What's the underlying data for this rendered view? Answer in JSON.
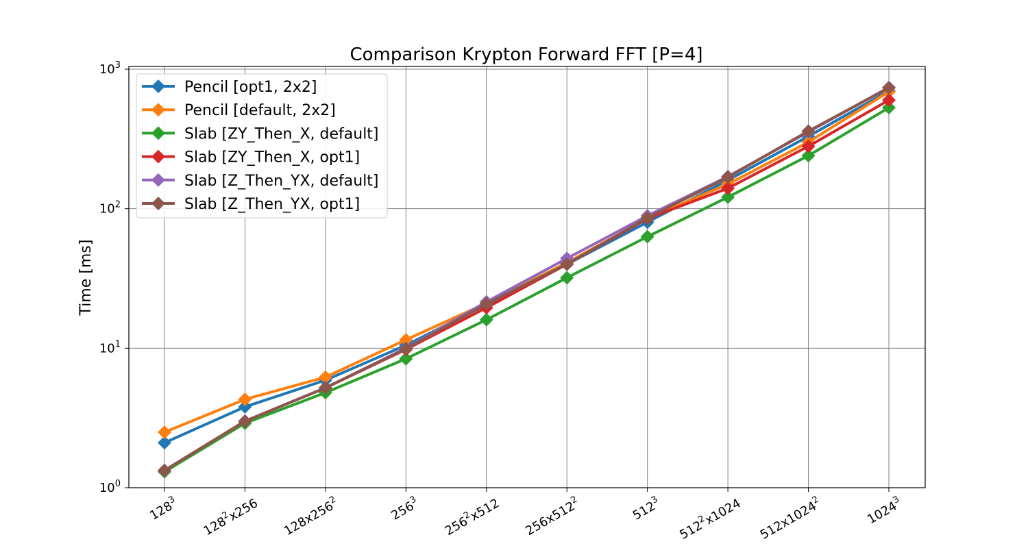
{
  "chart_data": {
    "type": "line",
    "title": "Comparison Krypton Forward FFT [P=4]",
    "xlabel": "",
    "ylabel": "Time [ms]",
    "yscale": "log",
    "ylim": [
      1,
      1000
    ],
    "y_ticks": [
      {
        "base": "10",
        "exp": "0",
        "value": 1
      },
      {
        "base": "10",
        "exp": "1",
        "value": 10
      },
      {
        "base": "10",
        "exp": "2",
        "value": 100
      },
      {
        "base": "10",
        "exp": "3",
        "value": 1000
      }
    ],
    "categories": [
      {
        "parts": [
          [
            "128",
            ""
          ],
          [
            "3",
            "sup"
          ]
        ]
      },
      {
        "parts": [
          [
            "128",
            ""
          ],
          [
            "2",
            "sup"
          ],
          [
            "x256",
            ""
          ]
        ]
      },
      {
        "parts": [
          [
            "128x256",
            ""
          ],
          [
            "2",
            "sup"
          ]
        ]
      },
      {
        "parts": [
          [
            "256",
            ""
          ],
          [
            "3",
            "sup"
          ]
        ]
      },
      {
        "parts": [
          [
            "256",
            ""
          ],
          [
            "2",
            "sup"
          ],
          [
            "x512",
            ""
          ]
        ]
      },
      {
        "parts": [
          [
            "256x512",
            ""
          ],
          [
            "2",
            "sup"
          ]
        ]
      },
      {
        "parts": [
          [
            "512",
            ""
          ],
          [
            "3",
            "sup"
          ]
        ]
      },
      {
        "parts": [
          [
            "512",
            ""
          ],
          [
            "2",
            "sup"
          ],
          [
            "x1024",
            ""
          ]
        ]
      },
      {
        "parts": [
          [
            "512x1024",
            ""
          ],
          [
            "2",
            "sup"
          ]
        ]
      },
      {
        "parts": [
          [
            "1024",
            ""
          ],
          [
            "3",
            "sup"
          ]
        ]
      }
    ],
    "grid": true,
    "legend_position": "upper-left",
    "marker": "diamond",
    "series": [
      {
        "name": "Pencil [opt1, 2x2]",
        "color": "#1f77b4",
        "values": [
          2.1,
          3.8,
          5.9,
          10.5,
          20.5,
          40,
          80,
          160,
          330,
          700
        ]
      },
      {
        "name": "Pencil [default, 2x2]",
        "color": "#ff7f0e",
        "values": [
          2.5,
          4.3,
          6.2,
          11.5,
          21,
          41,
          85,
          150,
          300,
          690
        ]
      },
      {
        "name": "Slab [ZY_Then_X, default]",
        "color": "#2ca02c",
        "values": [
          1.3,
          2.9,
          4.8,
          8.4,
          16,
          32,
          63,
          121,
          240,
          530
        ]
      },
      {
        "name": "Slab [ZY_Then_X, opt1]",
        "color": "#d62728",
        "values": [
          1.33,
          3.0,
          5.2,
          9.8,
          19.5,
          40,
          85,
          140,
          280,
          600
        ]
      },
      {
        "name": "Slab [Z_Then_YX, default]",
        "color": "#9467bd",
        "values": [
          1.33,
          3.0,
          5.2,
          10.0,
          21.5,
          44,
          89,
          170,
          355,
          740
        ]
      },
      {
        "name": "Slab [Z_Then_YX, opt1]",
        "color": "#8c564b",
        "values": [
          1.33,
          3.0,
          5.2,
          9.9,
          20.8,
          40,
          86,
          168,
          360,
          735
        ]
      }
    ]
  }
}
